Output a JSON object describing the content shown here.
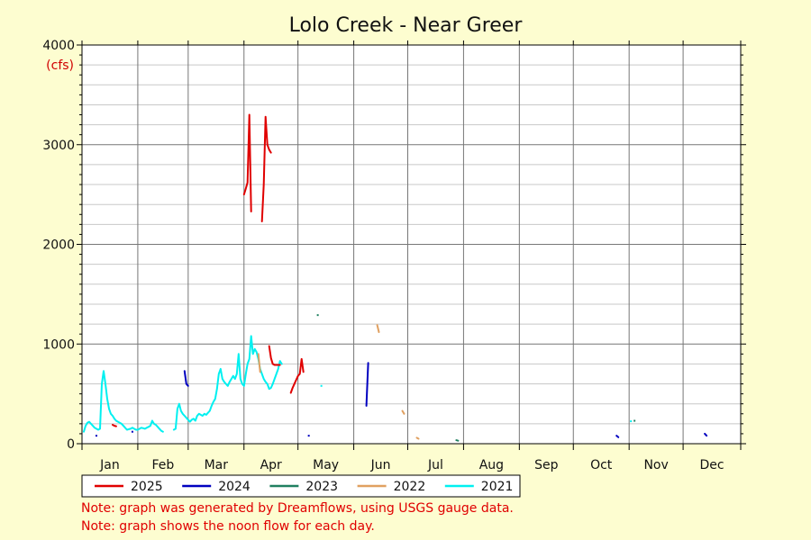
{
  "chart_data": {
    "type": "line",
    "title": "Lolo Creek - Near Greer",
    "unit_label": "(cfs)",
    "x_ticks": [
      "Jan",
      "Feb",
      "Mar",
      "Apr",
      "May",
      "Jun",
      "Jul",
      "Aug",
      "Sep",
      "Oct",
      "Nov",
      "Dec"
    ],
    "y_ticks": [
      0,
      1000,
      2000,
      3000,
      4000
    ],
    "ylim": [
      0,
      4000
    ],
    "xlim_day_of_year": [
      0,
      366
    ],
    "grid": true,
    "legend_placement": "bottom",
    "series": [
      {
        "name": "2025",
        "color": "#e00000",
        "segments": [
          [
            [
              17,
              190
            ],
            [
              18,
              180
            ],
            [
              19,
              175
            ]
          ],
          [
            [
              90,
              2500
            ],
            [
              91,
              2560
            ],
            [
              92,
              2620
            ],
            [
              93,
              3300
            ],
            [
              94,
              2330
            ]
          ],
          [
            [
              100,
              2230
            ],
            [
              101,
              2600
            ],
            [
              102,
              3280
            ],
            [
              103,
              3000
            ],
            [
              104,
              2950
            ],
            [
              105,
              2920
            ]
          ],
          [
            [
              104,
              980
            ],
            [
              105,
              860
            ],
            [
              106,
              800
            ],
            [
              107,
              790
            ],
            [
              108,
              790
            ],
            [
              109,
              790
            ],
            [
              110,
              790
            ]
          ],
          [
            [
              116,
              510
            ],
            [
              117,
              560
            ],
            [
              118,
              600
            ],
            [
              119,
              640
            ],
            [
              120,
              680
            ],
            [
              121,
              700
            ],
            [
              122,
              850
            ],
            [
              123,
              720
            ]
          ]
        ]
      },
      {
        "name": "2024",
        "color": "#0000c0",
        "segments": [
          [
            [
              8,
              80
            ]
          ],
          [
            [
              28,
              120
            ]
          ],
          [
            [
              57,
              730
            ],
            [
              58,
              600
            ],
            [
              59,
              580
            ]
          ],
          [
            [
              126,
              80
            ]
          ],
          [
            [
              158,
              380
            ],
            [
              159,
              810
            ]
          ],
          [
            [
              297,
              80
            ],
            [
              298,
              65
            ]
          ],
          [
            [
              346,
              100
            ],
            [
              347,
              80
            ]
          ]
        ]
      },
      {
        "name": "2023",
        "color": "#208060",
        "segments": [
          [
            [
              131,
              1290
            ]
          ],
          [
            [
              208,
              35
            ],
            [
              209,
              30
            ]
          ],
          [
            [
              307,
              230
            ]
          ]
        ]
      },
      {
        "name": "2022",
        "color": "#e0a060",
        "segments": [
          [
            [
              98,
              900
            ],
            [
              99,
              720
            ]
          ],
          [
            [
              164,
              1190
            ],
            [
              165,
              1120
            ]
          ],
          [
            [
              178,
              330
            ],
            [
              179,
              300
            ]
          ],
          [
            [
              186,
              60
            ],
            [
              187,
              50
            ]
          ]
        ]
      },
      {
        "name": "2021",
        "color": "#00f0f0",
        "segments": [
          [
            [
              1,
              120
            ],
            [
              2,
              180
            ],
            [
              3,
              210
            ],
            [
              4,
              220
            ],
            [
              5,
              200
            ],
            [
              6,
              180
            ],
            [
              7,
              160
            ],
            [
              8,
              150
            ],
            [
              9,
              140
            ],
            [
              10,
              150
            ],
            [
              11,
              600
            ],
            [
              12,
              730
            ],
            [
              13,
              600
            ],
            [
              14,
              450
            ],
            [
              15,
              350
            ],
            [
              16,
              300
            ],
            [
              17,
              280
            ],
            [
              18,
              250
            ],
            [
              19,
              230
            ],
            [
              20,
              220
            ],
            [
              21,
              210
            ],
            [
              22,
              200
            ],
            [
              23,
              180
            ],
            [
              24,
              160
            ],
            [
              25,
              140
            ],
            [
              26,
              145
            ],
            [
              27,
              150
            ],
            [
              28,
              160
            ],
            [
              29,
              150
            ],
            [
              30,
              140
            ],
            [
              31,
              140
            ],
            [
              32,
              150
            ],
            [
              33,
              160
            ],
            [
              34,
              155
            ],
            [
              35,
              150
            ],
            [
              36,
              160
            ],
            [
              37,
              170
            ],
            [
              38,
              180
            ],
            [
              39,
              230
            ],
            [
              40,
              200
            ],
            [
              41,
              190
            ],
            [
              42,
              170
            ],
            [
              43,
              150
            ],
            [
              44,
              130
            ],
            [
              45,
              120
            ]
          ],
          [
            [
              51,
              140
            ],
            [
              52,
              150
            ],
            [
              53,
              350
            ],
            [
              54,
              400
            ],
            [
              55,
              330
            ],
            [
              56,
              300
            ],
            [
              57,
              280
            ],
            [
              58,
              260
            ],
            [
              59,
              240
            ],
            [
              60,
              220
            ],
            [
              61,
              240
            ],
            [
              62,
              250
            ],
            [
              63,
              230
            ],
            [
              64,
              280
            ],
            [
              65,
              300
            ],
            [
              66,
              290
            ],
            [
              67,
              280
            ],
            [
              68,
              300
            ],
            [
              69,
              290
            ],
            [
              70,
              310
            ],
            [
              71,
              330
            ],
            [
              72,
              380
            ],
            [
              73,
              420
            ],
            [
              74,
              450
            ],
            [
              75,
              550
            ],
            [
              76,
              700
            ],
            [
              77,
              750
            ],
            [
              78,
              650
            ],
            [
              79,
              620
            ],
            [
              80,
              600
            ],
            [
              81,
              580
            ],
            [
              82,
              620
            ],
            [
              83,
              650
            ],
            [
              84,
              680
            ],
            [
              85,
              650
            ],
            [
              86,
              700
            ],
            [
              87,
              900
            ],
            [
              88,
              650
            ],
            [
              89,
              600
            ],
            [
              90,
              580
            ],
            [
              91,
              700
            ],
            [
              92,
              800
            ],
            [
              93,
              850
            ],
            [
              94,
              1080
            ],
            [
              95,
              900
            ],
            [
              96,
              950
            ],
            [
              97,
              920
            ],
            [
              98,
              850
            ],
            [
              99,
              750
            ],
            [
              100,
              700
            ],
            [
              101,
              650
            ],
            [
              102,
              620
            ],
            [
              103,
              600
            ],
            [
              104,
              550
            ],
            [
              105,
              560
            ],
            [
              106,
              600
            ],
            [
              107,
              650
            ],
            [
              108,
              700
            ],
            [
              109,
              750
            ],
            [
              110,
              830
            ],
            [
              111,
              800
            ]
          ],
          [
            [
              133,
              580
            ]
          ],
          [
            [
              305,
              225
            ]
          ]
        ]
      }
    ]
  },
  "notes": {
    "line1": "Note: graph was generated by Dreamflows, using USGS gauge data.",
    "line2": "Note: graph shows the noon flow for each day."
  }
}
